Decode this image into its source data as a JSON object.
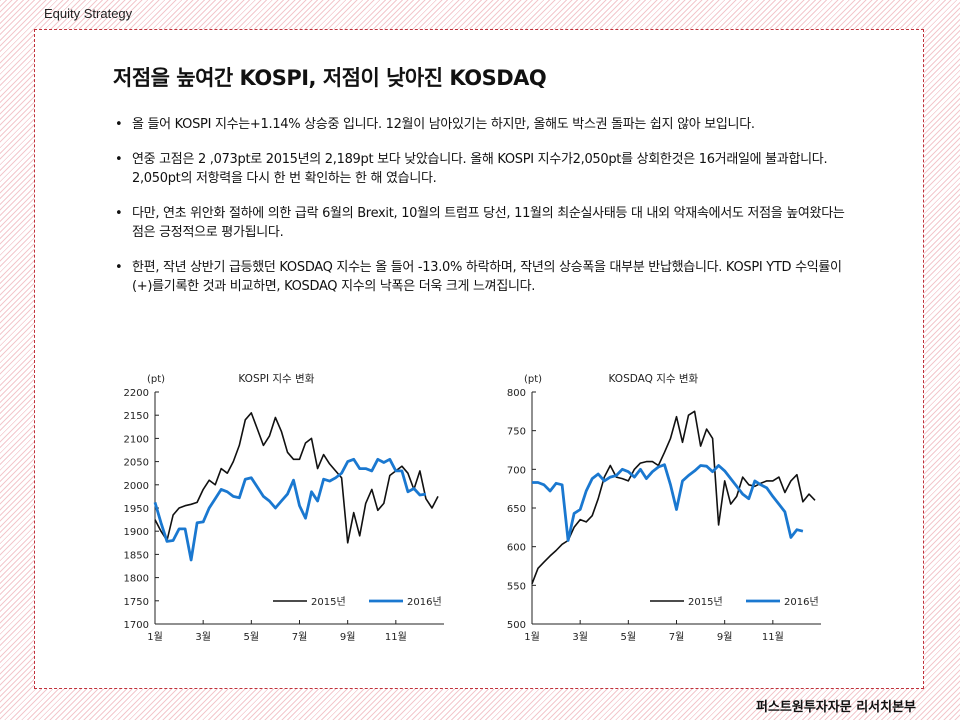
{
  "header": {
    "label": "Equity Strategy"
  },
  "title": "저점을 높여간 KOSPI, 저점이 낮아진 KOSDAQ",
  "bullets": [
    "올 들어 KOSPI 지수는+1.14% 상승중 입니다. 12월이 남아있기는 하지만, 올해도 박스권 돌파는 쉽지 않아 보입니다.",
    "연중 고점은 2 ,073pt로 2015년의 2,189pt 보다 낮았습니다. 올해 KOSPI 지수가2,050pt를 상회한것은 16거래일에 불과합니다. 2,050pt의 저항력을 다시 한 번 확인하는 한 해 였습니다.",
    "다만, 연초 위안화 절하에 의한 급락 6월의 Brexit, 10월의 트럼프 당선, 11월의 최순실사태등 대 내외 악재속에서도 저점을 높여왔다는 점은 긍정적으로 평가됩니다.",
    "한편, 작년 상반기 급등했던 KOSDAQ 지수는 올 들어 -13.0% 하락하며, 작년의 상승폭을 대부분 반납했습니다. KOSPI YTD 수익률이(+)를기록한 것과 비교하면, KOSDAQ 지수의 낙폭은 더욱 크게 느껴집니다."
  ],
  "footer": {
    "label": "퍼스트원투자자문 리서치본부"
  },
  "chart_data": [
    {
      "type": "line",
      "title": "KOSPI 지수 변화",
      "unit": "(pt)",
      "x_ticks": [
        "1월",
        "3월",
        "5월",
        "7월",
        "9월",
        "11월"
      ],
      "x_tick_positions": [
        0,
        4,
        8,
        12,
        16,
        20
      ],
      "x_range": [
        0,
        24
      ],
      "ylim": [
        1700,
        2200
      ],
      "y_ticks": [
        1700,
        1750,
        1800,
        1850,
        1900,
        1950,
        2000,
        2050,
        2100,
        2150,
        2200
      ],
      "grid": false,
      "legend": "bottom-right",
      "series": [
        {
          "name": "2015년",
          "color": "#111111",
          "x": [
            0,
            0.5,
            1,
            1.5,
            2,
            2.5,
            3,
            3.5,
            4,
            4.5,
            5,
            5.5,
            6,
            6.5,
            7,
            7.5,
            8,
            8.5,
            9,
            9.5,
            10,
            10.5,
            11,
            11.5,
            12,
            12.5,
            13,
            13.5,
            14,
            14.5,
            15,
            15.5,
            16,
            16.5,
            17,
            17.5,
            18,
            18.5,
            19,
            19.5,
            20,
            20.5,
            21,
            21.5,
            22,
            22.5,
            23,
            23.5
          ],
          "y": [
            1925,
            1900,
            1880,
            1935,
            1950,
            1955,
            1958,
            1962,
            1990,
            2010,
            2000,
            2035,
            2025,
            2050,
            2085,
            2140,
            2155,
            2120,
            2085,
            2105,
            2145,
            2115,
            2070,
            2055,
            2055,
            2090,
            2100,
            2035,
            2065,
            2045,
            2030,
            2015,
            1875,
            1940,
            1890,
            1960,
            1990,
            1945,
            1960,
            2020,
            2030,
            2040,
            2025,
            1990,
            2030,
            1970,
            1950,
            1975
          ]
        },
        {
          "name": "2016년",
          "color": "#1a78d0",
          "x": [
            0,
            0.5,
            1,
            1.5,
            2,
            2.5,
            3,
            3.5,
            4,
            4.5,
            5,
            5.5,
            6,
            6.5,
            7,
            7.5,
            8,
            8.5,
            9,
            9.5,
            10,
            10.5,
            11,
            11.5,
            12,
            12.5,
            13,
            13.5,
            14,
            14.5,
            15,
            15.5,
            16,
            16.5,
            17,
            17.5,
            18,
            18.5,
            19,
            19.5,
            20,
            20.5,
            21,
            21.5,
            22,
            22.5
          ],
          "y": [
            1962,
            1918,
            1878,
            1880,
            1905,
            1905,
            1838,
            1918,
            1920,
            1950,
            1970,
            1990,
            1985,
            1975,
            1972,
            2012,
            2015,
            1995,
            1975,
            1965,
            1950,
            1965,
            1980,
            2010,
            1955,
            1928,
            1985,
            1965,
            2012,
            2008,
            2015,
            2025,
            2050,
            2055,
            2035,
            2035,
            2030,
            2055,
            2048,
            2055,
            2030,
            2030,
            1985,
            1992,
            1978,
            1980
          ]
        }
      ]
    },
    {
      "type": "line",
      "title": "KOSDAQ 지수 변화",
      "unit": "(pt)",
      "x_ticks": [
        "1월",
        "3월",
        "5월",
        "7월",
        "9월",
        "11월"
      ],
      "x_tick_positions": [
        0,
        4,
        8,
        12,
        16,
        20
      ],
      "x_range": [
        0,
        24
      ],
      "ylim": [
        500,
        800
      ],
      "y_ticks": [
        500,
        550,
        600,
        650,
        700,
        750,
        800
      ],
      "grid": false,
      "legend": "bottom-right",
      "series": [
        {
          "name": "2015년",
          "color": "#111111",
          "x": [
            0,
            0.5,
            1,
            1.5,
            2,
            2.5,
            3,
            3.5,
            4,
            4.5,
            5,
            5.5,
            6,
            6.5,
            7,
            7.5,
            8,
            8.5,
            9,
            9.5,
            10,
            10.5,
            11,
            11.5,
            12,
            12.5,
            13,
            13.5,
            14,
            14.5,
            15,
            15.5,
            16,
            16.5,
            17,
            17.5,
            18,
            18.5,
            19,
            19.5,
            20,
            20.5,
            21,
            21.5,
            22,
            22.5,
            23,
            23.5
          ],
          "y": [
            552,
            572,
            580,
            588,
            595,
            603,
            608,
            625,
            635,
            632,
            640,
            662,
            690,
            705,
            690,
            688,
            685,
            700,
            708,
            710,
            710,
            705,
            722,
            740,
            768,
            735,
            770,
            775,
            730,
            752,
            740,
            628,
            685,
            655,
            665,
            690,
            680,
            678,
            682,
            685,
            685,
            690,
            670,
            685,
            693,
            658,
            668,
            660
          ]
        },
        {
          "name": "2016년",
          "color": "#1a78d0",
          "x": [
            0,
            0.5,
            1,
            1.5,
            2,
            2.5,
            3,
            3.5,
            4,
            4.5,
            5,
            5.5,
            6,
            6.5,
            7,
            7.5,
            8,
            8.5,
            9,
            9.5,
            10,
            10.5,
            11,
            11.5,
            12,
            12.5,
            13,
            13.5,
            14,
            14.5,
            15,
            15.5,
            16,
            16.5,
            17,
            17.5,
            18,
            18.5,
            19,
            19.5,
            20,
            20.5,
            21,
            21.5,
            22,
            22.5
          ],
          "y": [
            683,
            683,
            680,
            672,
            682,
            680,
            608,
            643,
            648,
            672,
            688,
            694,
            685,
            690,
            692,
            700,
            697,
            690,
            700,
            688,
            697,
            703,
            706,
            680,
            648,
            685,
            692,
            698,
            705,
            704,
            697,
            705,
            698,
            688,
            678,
            668,
            662,
            685,
            680,
            676,
            665,
            655,
            645,
            612,
            622,
            620
          ]
        }
      ]
    }
  ]
}
